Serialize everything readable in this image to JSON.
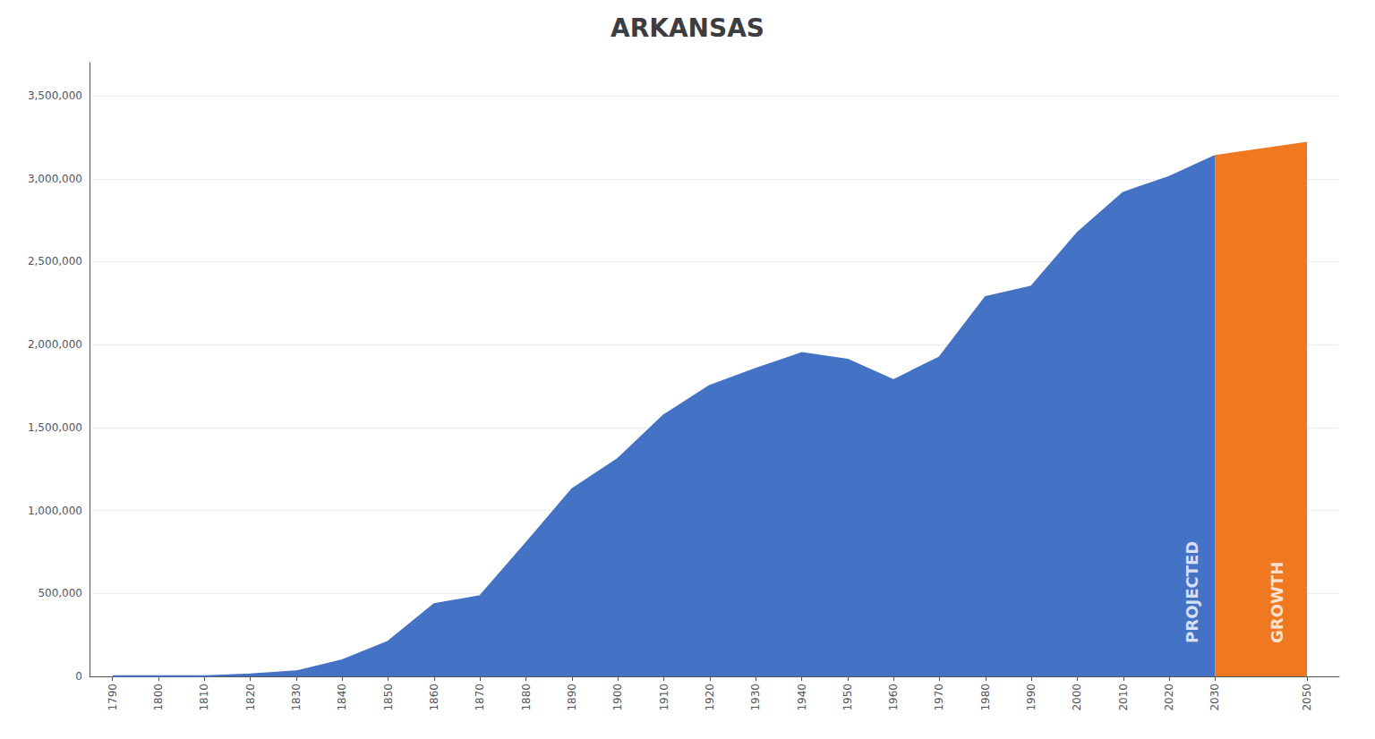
{
  "chart_data": {
    "type": "area",
    "title": "ARKANSAS",
    "x": [
      1790,
      1800,
      1810,
      1820,
      1830,
      1840,
      1850,
      1860,
      1870,
      1880,
      1890,
      1900,
      1910,
      1920,
      1930,
      1940,
      1950,
      1960,
      1970,
      1980,
      1990,
      2000,
      2010,
      2020,
      2030,
      2050
    ],
    "values": [
      1000,
      1000,
      1062,
      12579,
      30388,
      97574,
      209897,
      435450,
      484471,
      802525,
      1128179,
      1311564,
      1574449,
      1752204,
      1854482,
      1949387,
      1909511,
      1786272,
      1923295,
      2286435,
      2350725,
      2673400,
      2915918,
      3011524,
      3138000,
      3217000
    ],
    "colors": [
      "#4472c4",
      "#4472c4",
      "#4472c4",
      "#4472c4",
      "#4472c4",
      "#4472c4",
      "#4472c4",
      "#4472c4",
      "#4472c4",
      "#4472c4",
      "#4472c4",
      "#4472c4",
      "#4472c4",
      "#4472c4",
      "#4472c4",
      "#4472c4",
      "#4472c4",
      "#4472c4",
      "#4472c4",
      "#4472c4",
      "#4472c4",
      "#4472c4",
      "#4472c4",
      "#4472c4",
      "#f07820",
      "#f07820"
    ],
    "xlim": [
      1785,
      2057
    ],
    "xticks": [
      1790,
      1800,
      1810,
      1820,
      1830,
      1840,
      1850,
      1860,
      1870,
      1880,
      1890,
      1900,
      1910,
      1920,
      1930,
      1940,
      1950,
      1960,
      1970,
      1980,
      1990,
      2000,
      2010,
      2020,
      2030,
      2050
    ],
    "ylim": [
      0,
      3700000
    ],
    "yticks": [
      0,
      {
        "value": 500000,
        "label": "500,000"
      },
      {
        "value": 1000000,
        "label": "1,000,000"
      },
      {
        "value": 1500000,
        "label": "1,500,000"
      },
      {
        "value": 2000000,
        "label": "2,000,000"
      },
      {
        "value": 2500000,
        "label": "2,500,000"
      },
      {
        "value": 3000000,
        "label": "3,000,000"
      },
      {
        "value": 3500000,
        "label": "3,500,000"
      }
    ],
    "grid": true,
    "annotations": [
      {
        "text": "PROJECTED",
        "x": 2025,
        "y": 200000
      },
      {
        "text": "GROWTH",
        "x": 2043.5,
        "y": 200000
      }
    ]
  }
}
